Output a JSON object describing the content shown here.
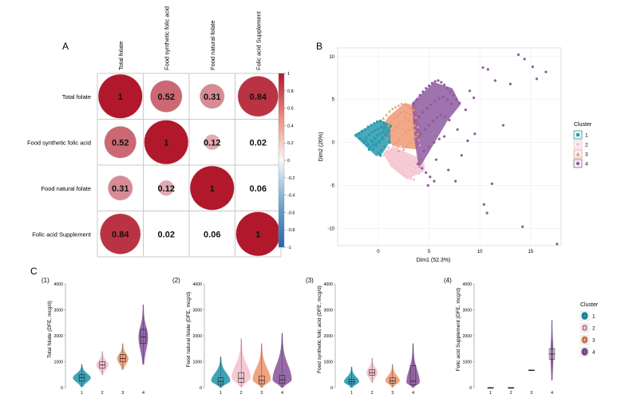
{
  "panel_labels": {
    "A": "A",
    "B": "B",
    "C": "C"
  },
  "sub_labels": [
    "(1)",
    "(2)",
    "(3)",
    "(4)"
  ],
  "colors": {
    "cluster": [
      "#2a9bb0",
      "#f5c4cf",
      "#ef9a74",
      "#8e5aa0"
    ],
    "corr_pos": "#b2182b",
    "corr_neg": "#2166ac"
  },
  "chart_data": [
    {
      "type": "heatmap",
      "variables": [
        "Total folate",
        "Food synthetic folic acid",
        "Food natural folate",
        "Folic acid Supplement"
      ],
      "matrix": [
        [
          1,
          0.52,
          0.31,
          0.84
        ],
        [
          0.52,
          1,
          0.12,
          0.02
        ],
        [
          0.31,
          0.12,
          1,
          0.06
        ],
        [
          0.84,
          0.02,
          0.06,
          1
        ]
      ],
      "shown_labels": [
        [
          "1",
          "0.52",
          "0.31",
          "0.84"
        ],
        [
          "0.52",
          "1",
          "0.12",
          "0.02"
        ],
        [
          "0.31",
          "0.12",
          "1",
          "0.06"
        ],
        [
          "0.84",
          "0.02",
          "0.06",
          "1"
        ]
      ],
      "colorbar_ticks": [
        "1",
        "0.8",
        "0.6",
        "0.4",
        "0.2",
        "0",
        "-0.2",
        "-0.4",
        "-0.6",
        "-0.8",
        "-1"
      ],
      "colorbar_values": [
        1,
        0.8,
        0.6,
        0.4,
        0.2,
        0,
        -0.2,
        -0.4,
        -0.6,
        -0.8,
        -1
      ]
    },
    {
      "type": "scatter",
      "xlabel": "Dim1 (52.3%)",
      "ylabel": "Dim2 (26%)",
      "xlim": [
        -4,
        18
      ],
      "ylim": [
        -12,
        11
      ],
      "xticks": [
        0,
        5,
        10,
        15
      ],
      "yticks": [
        -10,
        -5,
        0,
        5,
        10
      ],
      "legend_title": "Cluster",
      "legend_position": "right",
      "legend_labels": [
        "1",
        "2",
        "3",
        "4"
      ],
      "series": [
        {
          "name": "1",
          "x": [
            -2.2,
            -1.9,
            -1.6,
            -1.3,
            -1.0,
            -0.7,
            -0.4,
            -0.1,
            0.2,
            0.5,
            0.8,
            -1.5,
            -1.2,
            -0.9,
            -0.6,
            -0.3,
            0.0,
            0.3,
            0.6,
            -1.0,
            -0.7,
            -0.4,
            -0.1,
            0.2,
            0.5,
            -0.5,
            -0.2,
            0.1,
            0.4,
            0.0,
            0.3,
            0.6,
            -1.8,
            -1.4,
            -1.1,
            -0.8,
            -0.5,
            -0.2,
            0.1,
            0.4,
            0.7,
            1.0,
            1.2,
            -0.6,
            -0.3,
            0.9,
            1.1,
            0.2,
            -0.9,
            -1.2
          ],
          "y": [
            0.8,
            1.0,
            1.3,
            1.5,
            1.8,
            2.0,
            2.2,
            2.4,
            2.5,
            2.3,
            2.1,
            0.3,
            0.6,
            0.9,
            1.2,
            1.4,
            1.6,
            1.8,
            1.7,
            -0.2,
            0.2,
            0.5,
            0.8,
            1.0,
            1.2,
            -0.8,
            -0.4,
            0.0,
            0.4,
            -1.2,
            -0.9,
            -0.5,
            0.5,
            0.0,
            -0.3,
            -0.5,
            -0.3,
            -0.1,
            0.2,
            0.6,
            0.9,
            1.3,
            1.9,
            0.1,
            0.4,
            0.5,
            0.0,
            -1.5,
            -0.8,
            0.2
          ]
        },
        {
          "name": "2",
          "x": [
            0.8,
            1.1,
            1.4,
            1.7,
            2.0,
            2.3,
            2.6,
            2.9,
            3.2,
            3.5,
            1.0,
            1.3,
            1.6,
            1.9,
            2.2,
            2.5,
            2.8,
            3.1,
            3.4,
            3.7,
            0.6,
            0.9,
            1.2,
            1.5,
            1.8,
            2.1,
            2.4,
            2.7,
            1.5,
            1.8,
            2.1,
            2.4,
            2.7,
            3.0,
            3.3,
            3.6,
            3.9,
            4.2,
            1.7,
            2.0,
            2.3,
            2.6,
            2.9,
            3.2,
            3.5,
            4.4,
            4.0,
            3.8,
            2.2,
            1.4
          ],
          "y": [
            -1.0,
            -1.3,
            -1.6,
            -1.9,
            -2.2,
            -2.5,
            -2.8,
            -3.0,
            -3.2,
            -3.4,
            -0.6,
            -0.9,
            -1.2,
            -1.5,
            -1.8,
            -2.1,
            -2.3,
            -2.6,
            -2.8,
            -3.0,
            -1.5,
            -1.8,
            -2.1,
            -2.4,
            -2.7,
            -3.0,
            -3.3,
            -3.6,
            -0.4,
            -0.7,
            -1.0,
            -1.3,
            -1.6,
            -1.9,
            -2.1,
            -2.3,
            -2.6,
            -2.8,
            -3.0,
            -3.3,
            -3.6,
            -3.8,
            -4.0,
            -4.2,
            -4.3,
            -3.0,
            -3.6,
            -2.2,
            -0.5,
            -2.6
          ]
        },
        {
          "name": "3",
          "x": [
            0.5,
            0.8,
            1.1,
            1.4,
            1.7,
            2.0,
            2.3,
            2.6,
            2.9,
            3.2,
            3.5,
            1.0,
            1.3,
            1.6,
            1.9,
            2.2,
            2.5,
            2.8,
            3.1,
            3.4,
            3.7,
            1.2,
            1.5,
            1.8,
            2.1,
            2.4,
            2.7,
            3.0,
            3.3,
            3.6,
            1.8,
            2.1,
            2.4,
            2.7,
            3.0,
            3.3,
            3.6,
            3.9,
            2.5,
            2.8,
            3.1,
            3.4,
            3.7,
            4.0,
            0.9,
            1.5,
            2.0,
            4.1,
            3.9,
            2.6
          ],
          "y": [
            2.8,
            3.2,
            3.6,
            3.9,
            4.1,
            4.3,
            4.5,
            4.4,
            4.2,
            4.0,
            3.8,
            2.0,
            2.4,
            2.8,
            3.1,
            3.4,
            3.6,
            3.5,
            3.3,
            3.1,
            2.9,
            1.0,
            1.4,
            1.8,
            2.2,
            2.5,
            2.7,
            2.6,
            2.3,
            2.0,
            0.0,
            0.4,
            0.8,
            1.2,
            1.5,
            1.7,
            1.4,
            1.0,
            -0.8,
            -0.4,
            0.0,
            0.4,
            0.7,
            0.3,
            0.5,
            -0.2,
            -1.0,
            -0.3,
            1.8,
            3.0
          ]
        },
        {
          "name": "4",
          "x": [
            3.5,
            3.8,
            4.1,
            4.4,
            4.7,
            5.0,
            5.3,
            5.6,
            5.9,
            6.2,
            6.5,
            6.8,
            7.1,
            7.4,
            7.7,
            8.0,
            3.6,
            4.0,
            4.4,
            4.8,
            5.2,
            5.6,
            6.0,
            6.4,
            6.8,
            7.2,
            4.2,
            4.6,
            5.0,
            5.4,
            5.8,
            6.2,
            6.6,
            7.0,
            4.5,
            5.0,
            5.5,
            6.0,
            6.5,
            3.9,
            4.3,
            4.7,
            5.1,
            5.5,
            9.0,
            9.4,
            8.6,
            7.8,
            8.2,
            5.7,
            4.9,
            10.3,
            10.8,
            11.5,
            13.0,
            13.8,
            14.4,
            15.2,
            16.5,
            15.6,
            10.4,
            10.7,
            14.2,
            17.6,
            11.2,
            9.5,
            6.9,
            7.6,
            8.8,
            12.3
          ],
          "y": [
            4.5,
            5.0,
            5.5,
            5.9,
            6.3,
            6.6,
            6.9,
            7.1,
            7.2,
            7.0,
            6.7,
            6.3,
            5.9,
            5.5,
            5.0,
            4.6,
            2.5,
            3.0,
            3.5,
            4.0,
            4.4,
            4.8,
            5.1,
            5.3,
            5.0,
            4.5,
            1.0,
            1.5,
            2.0,
            2.5,
            2.9,
            3.2,
            3.0,
            2.6,
            -1.0,
            -0.5,
            0.0,
            0.4,
            0.7,
            -2.5,
            -3.0,
            -3.5,
            -4.0,
            -4.5,
            6.0,
            5.2,
            3.8,
            1.5,
            -1.5,
            -2.0,
            -5.0,
            8.7,
            8.5,
            7.2,
            6.8,
            10.2,
            9.7,
            8.8,
            8.2,
            7.4,
            -7.2,
            -8.2,
            -9.8,
            -11.8,
            -4.8,
            1.0,
            -3.2,
            -4.5,
            0.2,
            2.0
          ]
        }
      ]
    },
    {
      "type": "violin",
      "sub": "(1)",
      "ylabel": "Total folate (DFE, mcg/d)",
      "ylim": [
        0,
        4000
      ],
      "yticks": [
        0,
        1000,
        2000,
        3000,
        4000
      ],
      "categories": [
        "1",
        "2",
        "3",
        "4"
      ],
      "groups": [
        {
          "min": 30,
          "q1": 250,
          "median": 380,
          "q3": 500,
          "max": 900,
          "spread": 0.88,
          "mode": 380
        },
        {
          "min": 500,
          "q1": 760,
          "median": 880,
          "q3": 1000,
          "max": 1400,
          "spread": 0.6,
          "mode": 880
        },
        {
          "min": 700,
          "q1": 1000,
          "median": 1120,
          "q3": 1280,
          "max": 1700,
          "spread": 0.55,
          "mode": 1120
        },
        {
          "min": 900,
          "q1": 1700,
          "median": 1950,
          "q3": 2250,
          "max": 3200,
          "spread": 0.45,
          "mode": 1950
        }
      ]
    },
    {
      "type": "violin",
      "sub": "(2)",
      "ylabel": "Food natural folate (DFE, mcg/d)",
      "ylim": [
        0,
        4000
      ],
      "yticks": [
        0,
        1000,
        2000,
        3000,
        4000
      ],
      "categories": [
        "1",
        "2",
        "3",
        "4"
      ],
      "groups": [
        {
          "min": 10,
          "q1": 120,
          "median": 240,
          "q3": 380,
          "max": 1200,
          "spread": 0.95,
          "mode": 260
        },
        {
          "min": 20,
          "q1": 200,
          "median": 360,
          "q3": 580,
          "max": 1900,
          "spread": 0.95,
          "mode": 380
        },
        {
          "min": 10,
          "q1": 150,
          "median": 280,
          "q3": 450,
          "max": 1700,
          "spread": 0.9,
          "mode": 300
        },
        {
          "min": 10,
          "q1": 160,
          "median": 300,
          "q3": 480,
          "max": 2100,
          "spread": 0.95,
          "mode": 300
        }
      ]
    },
    {
      "type": "violin",
      "sub": "(3)",
      "ylabel": "Food synthetic folic acid (DFE, mcg/d)",
      "ylim": [
        0,
        4000
      ],
      "yticks": [
        0,
        1000,
        2000,
        3000,
        4000
      ],
      "categories": [
        "1",
        "2",
        "3",
        "4"
      ],
      "groups": [
        {
          "min": 10,
          "q1": 150,
          "median": 230,
          "q3": 330,
          "max": 800,
          "spread": 0.75,
          "mode": 230
        },
        {
          "min": 200,
          "q1": 480,
          "median": 580,
          "q3": 700,
          "max": 1150,
          "spread": 0.55,
          "mode": 580
        },
        {
          "min": 20,
          "q1": 170,
          "median": 260,
          "q3": 380,
          "max": 900,
          "spread": 0.7,
          "mode": 260
        },
        {
          "min": 10,
          "q1": 110,
          "median": 250,
          "q3": 850,
          "max": 1700,
          "spread": 0.65,
          "mode": 200
        }
      ]
    },
    {
      "type": "violin",
      "sub": "(4)",
      "ylabel": "Folic acid Supplement (DFE, mcg/d)",
      "ylim": [
        0,
        4000
      ],
      "yticks": [
        0,
        1000,
        2000,
        3000,
        4000
      ],
      "categories": [
        "1",
        "2",
        "3",
        "4"
      ],
      "legend_title": "Cluster",
      "legend_labels": [
        "1",
        "2",
        "3",
        "4"
      ],
      "groups": [
        {
          "min": 0,
          "q1": 0,
          "median": 0,
          "q3": 0,
          "max": 20,
          "spread": 0.02,
          "mode": 0,
          "flat": true
        },
        {
          "min": 0,
          "q1": 0,
          "median": 0,
          "q3": 0,
          "max": 20,
          "spread": 0.02,
          "mode": 0,
          "flat": true
        },
        {
          "min": 640,
          "q1": 660,
          "median": 670,
          "q3": 680,
          "max": 700,
          "spread": 0.02,
          "mode": 670,
          "flat": true
        },
        {
          "min": 280,
          "q1": 1100,
          "median": 1300,
          "q3": 1500,
          "max": 2600,
          "spread": 0.12,
          "mode": 1300
        }
      ]
    }
  ]
}
